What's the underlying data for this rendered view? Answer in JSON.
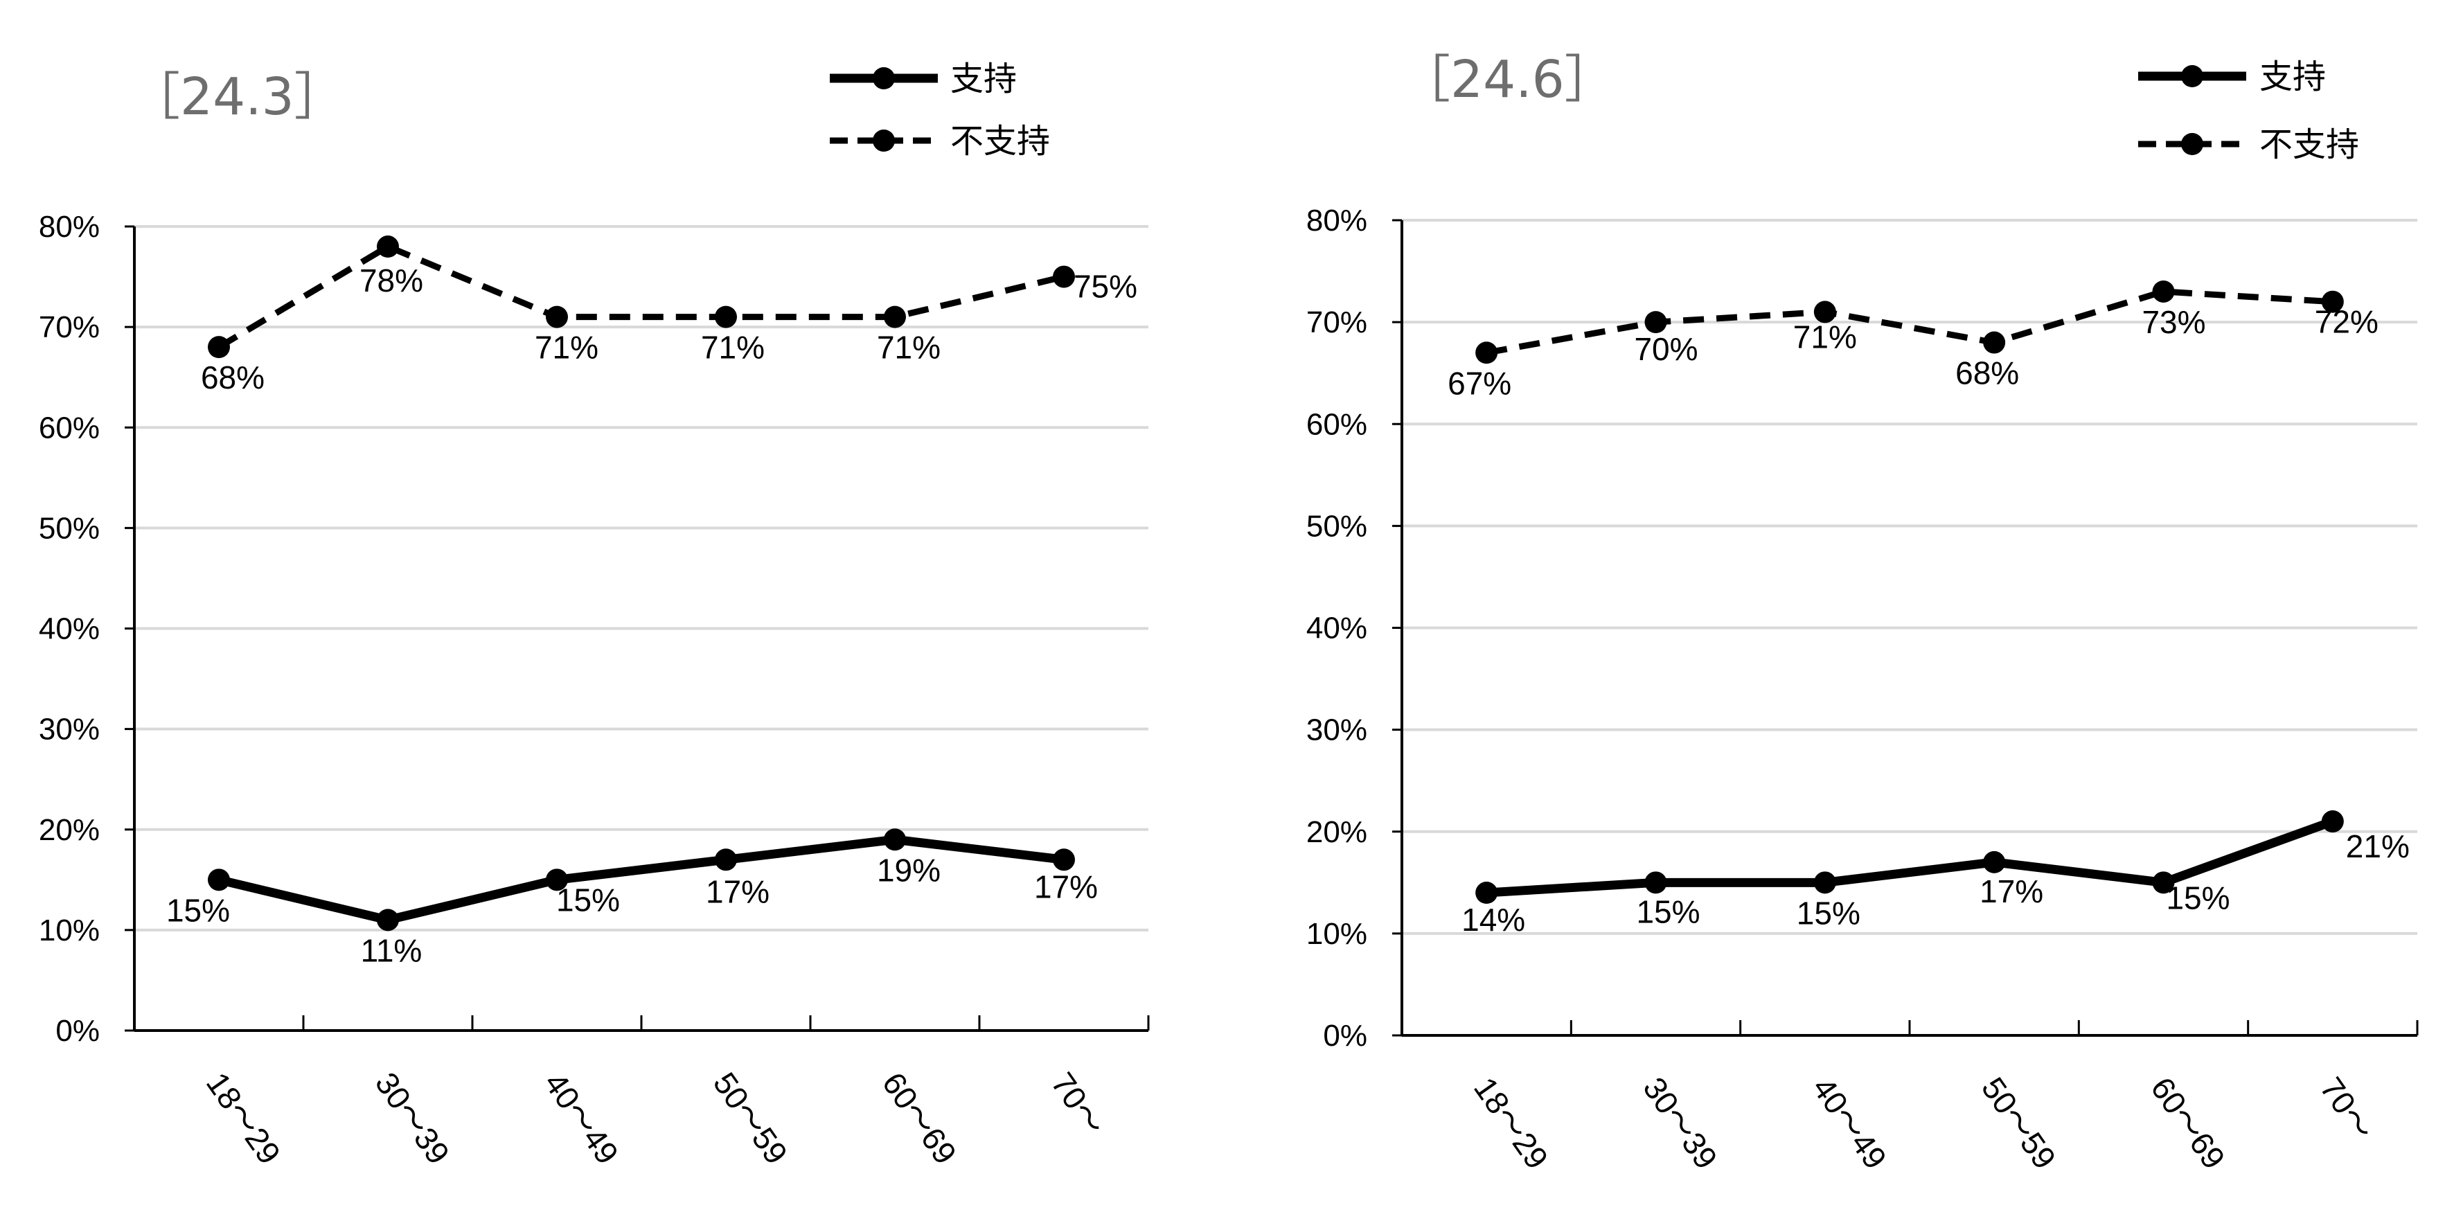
{
  "chart_data": [
    {
      "type": "line",
      "title": "［24.3］",
      "categories": [
        "18～29",
        "30～39",
        "40～49",
        "50～59",
        "60～69",
        "70～"
      ],
      "series": [
        {
          "name": "支持",
          "style": "solid",
          "values": [
            15,
            11,
            15,
            17,
            19,
            17
          ],
          "labels": [
            "15%",
            "11%",
            "15%",
            "17%",
            "19%",
            "17%"
          ]
        },
        {
          "name": "不支持",
          "style": "dashed",
          "values": [
            68,
            78,
            71,
            71,
            71,
            75
          ],
          "labels": [
            "68%",
            "78%",
            "71%",
            "71%",
            "71%",
            "75%"
          ]
        }
      ],
      "yticks": [
        "0%",
        "10%",
        "20%",
        "30%",
        "40%",
        "50%",
        "60%",
        "70%",
        "80%"
      ],
      "ylim": [
        0,
        80
      ],
      "grid": true,
      "legend": "top-right"
    },
    {
      "type": "line",
      "title": "［24.6］",
      "categories": [
        "18～29",
        "30～39",
        "40～49",
        "50～59",
        "60～69",
        "70～"
      ],
      "series": [
        {
          "name": "支持",
          "style": "solid",
          "values": [
            14,
            15,
            15,
            17,
            15,
            21
          ],
          "labels": [
            "14%",
            "15%",
            "15%",
            "17%",
            "15%",
            "21%"
          ]
        },
        {
          "name": "不支持",
          "style": "dashed",
          "values": [
            67,
            70,
            71,
            68,
            73,
            72
          ],
          "labels": [
            "67%",
            "70%",
            "71%",
            "68%",
            "73%",
            "72%"
          ]
        }
      ],
      "yticks": [
        "0%",
        "10%",
        "20%",
        "30%",
        "40%",
        "50%",
        "60%",
        "70%",
        "80%"
      ],
      "ylim": [
        0,
        80
      ],
      "grid": true,
      "legend": "top-right"
    }
  ],
  "colors": {
    "line": "#000000",
    "grid": "#d9d9d9",
    "title": "#6e6e6e"
  }
}
